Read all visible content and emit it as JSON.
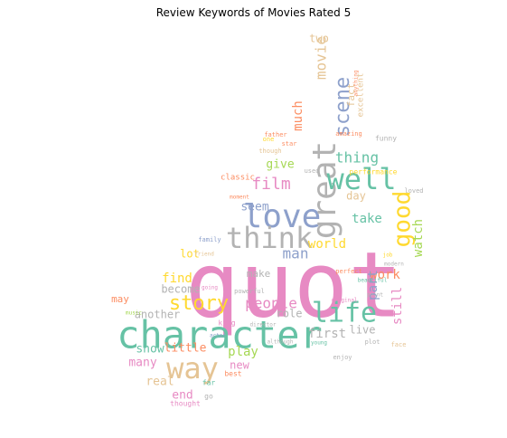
{
  "title": "Review Keywords of Movies Rated 5",
  "palette": {
    "pink": "#e78ac3",
    "teal": "#66c2a5",
    "blue": "#8da0cb",
    "gray": "#b3b3b3",
    "yellow": "#ffd92f",
    "tan": "#e5c494",
    "orange": "#fc8d62",
    "green": "#a6d854"
  },
  "words": [
    {
      "text": "quot",
      "color": "pink"
    },
    {
      "text": "character",
      "color": "teal"
    },
    {
      "text": "love",
      "color": "blue"
    },
    {
      "text": "great",
      "color": "gray"
    },
    {
      "text": "well",
      "color": "teal"
    },
    {
      "text": "think",
      "color": "gray"
    },
    {
      "text": "good",
      "color": "yellow"
    },
    {
      "text": "life",
      "color": "teal"
    },
    {
      "text": "way",
      "color": "tan"
    },
    {
      "text": "story",
      "color": "yellow"
    },
    {
      "text": "scene",
      "color": "blue"
    },
    {
      "text": "film",
      "color": "pink"
    },
    {
      "text": "people",
      "color": "pink"
    },
    {
      "text": "movie",
      "color": "tan"
    },
    {
      "text": "much",
      "color": "orange"
    },
    {
      "text": "thing",
      "color": "teal"
    },
    {
      "text": "man",
      "color": "blue"
    },
    {
      "text": "watch",
      "color": "green"
    },
    {
      "text": "find",
      "color": "yellow"
    },
    {
      "text": "world",
      "color": "yellow"
    },
    {
      "text": "take",
      "color": "teal"
    },
    {
      "text": "work",
      "color": "orange"
    },
    {
      "text": "still",
      "color": "pink"
    },
    {
      "text": "part",
      "color": "blue"
    },
    {
      "text": "first",
      "color": "gray"
    },
    {
      "text": "play",
      "color": "green"
    },
    {
      "text": "little",
      "color": "orange"
    },
    {
      "text": "show",
      "color": "teal"
    },
    {
      "text": "end",
      "color": "pink"
    },
    {
      "text": "many",
      "color": "pink"
    },
    {
      "text": "real",
      "color": "tan"
    },
    {
      "text": "seem",
      "color": "blue"
    },
    {
      "text": "give",
      "color": "green"
    },
    {
      "text": "two",
      "color": "tan"
    },
    {
      "text": "role",
      "color": "gray"
    },
    {
      "text": "another",
      "color": "gray"
    },
    {
      "text": "become",
      "color": "gray"
    },
    {
      "text": "new",
      "color": "pink"
    },
    {
      "text": "lot",
      "color": "yellow"
    },
    {
      "text": "day",
      "color": "tan"
    },
    {
      "text": "may",
      "color": "orange"
    },
    {
      "text": "live",
      "color": "gray"
    },
    {
      "text": "make",
      "color": "gray"
    },
    {
      "text": "fact",
      "color": "tan"
    },
    {
      "text": "excellent",
      "color": "tan"
    },
    {
      "text": "classic",
      "color": "orange"
    },
    {
      "text": "funny",
      "color": "gray"
    },
    {
      "text": "best",
      "color": "orange"
    },
    {
      "text": "far",
      "color": "teal"
    },
    {
      "text": "performance",
      "color": "yellow"
    },
    {
      "text": "king",
      "color": "pink"
    },
    {
      "text": "family",
      "color": "blue"
    },
    {
      "text": "enjoy",
      "color": "gray"
    },
    {
      "text": "star",
      "color": "orange"
    },
    {
      "text": "used",
      "color": "gray"
    },
    {
      "text": "powerful",
      "color": "gray"
    },
    {
      "text": "plot",
      "color": "gray"
    },
    {
      "text": "go",
      "color": "gray"
    },
    {
      "text": "thought",
      "color": "pink"
    },
    {
      "text": "loved",
      "color": "gray"
    },
    {
      "text": "perfect",
      "color": "orange"
    },
    {
      "text": "though",
      "color": "tan"
    },
    {
      "text": "one",
      "color": "yellow"
    },
    {
      "text": "father",
      "color": "orange"
    },
    {
      "text": "face",
      "color": "tan"
    },
    {
      "text": "amazing",
      "color": "orange"
    },
    {
      "text": "point",
      "color": "gray"
    },
    {
      "text": "actor",
      "color": "blue"
    },
    {
      "text": "music",
      "color": "green"
    },
    {
      "text": "original",
      "color": "pink"
    },
    {
      "text": "beautiful",
      "color": "teal"
    },
    {
      "text": "director",
      "color": "gray"
    },
    {
      "text": "anything",
      "color": "orange"
    },
    {
      "text": "modern",
      "color": "gray"
    },
    {
      "text": "although",
      "color": "gray"
    },
    {
      "text": "moment",
      "color": "orange"
    },
    {
      "text": "young",
      "color": "teal"
    },
    {
      "text": "going",
      "color": "pink"
    },
    {
      "text": "friend",
      "color": "tan"
    },
    {
      "text": "job",
      "color": "yellow"
    }
  ]
}
